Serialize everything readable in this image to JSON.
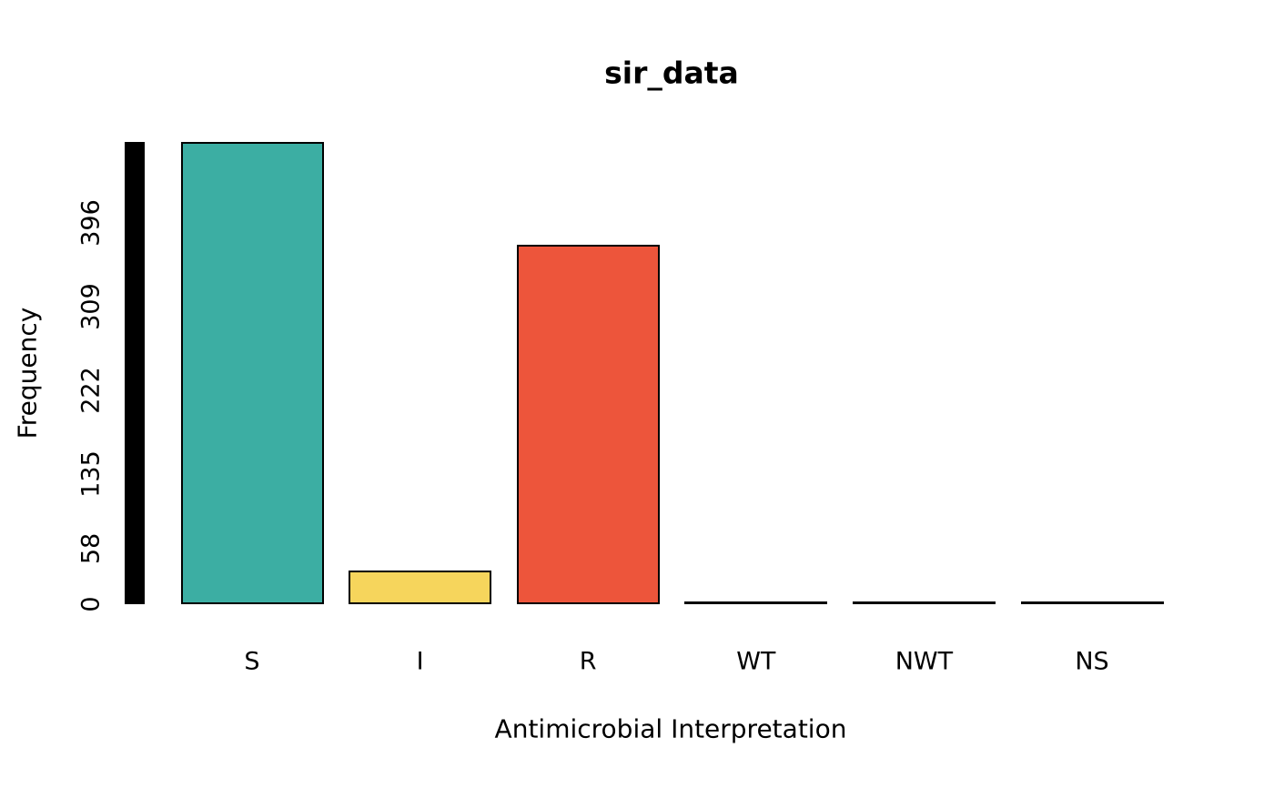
{
  "chart_data": {
    "type": "bar",
    "title": "sir_data",
    "xlabel": "Antimicrobial Interpretation",
    "ylabel": "Frequency",
    "categories": [
      "S",
      "I",
      "R",
      "WT",
      "NWT",
      "NS"
    ],
    "values": [
      480,
      35,
      373,
      0,
      0,
      0
    ],
    "bar_colors": [
      "#3CAEA3",
      "#F6D55C",
      "#ED553B",
      "#000000",
      "#000000",
      "#000000"
    ],
    "bar_border_color": "#000000",
    "yticks": [
      0,
      58,
      135,
      222,
      309,
      396
    ],
    "ylim": [
      0,
      480
    ],
    "grid": false,
    "legend": null,
    "y_axis_bar": {
      "value": 480,
      "color": "#000000"
    },
    "background_color": "#FFFFFF"
  }
}
